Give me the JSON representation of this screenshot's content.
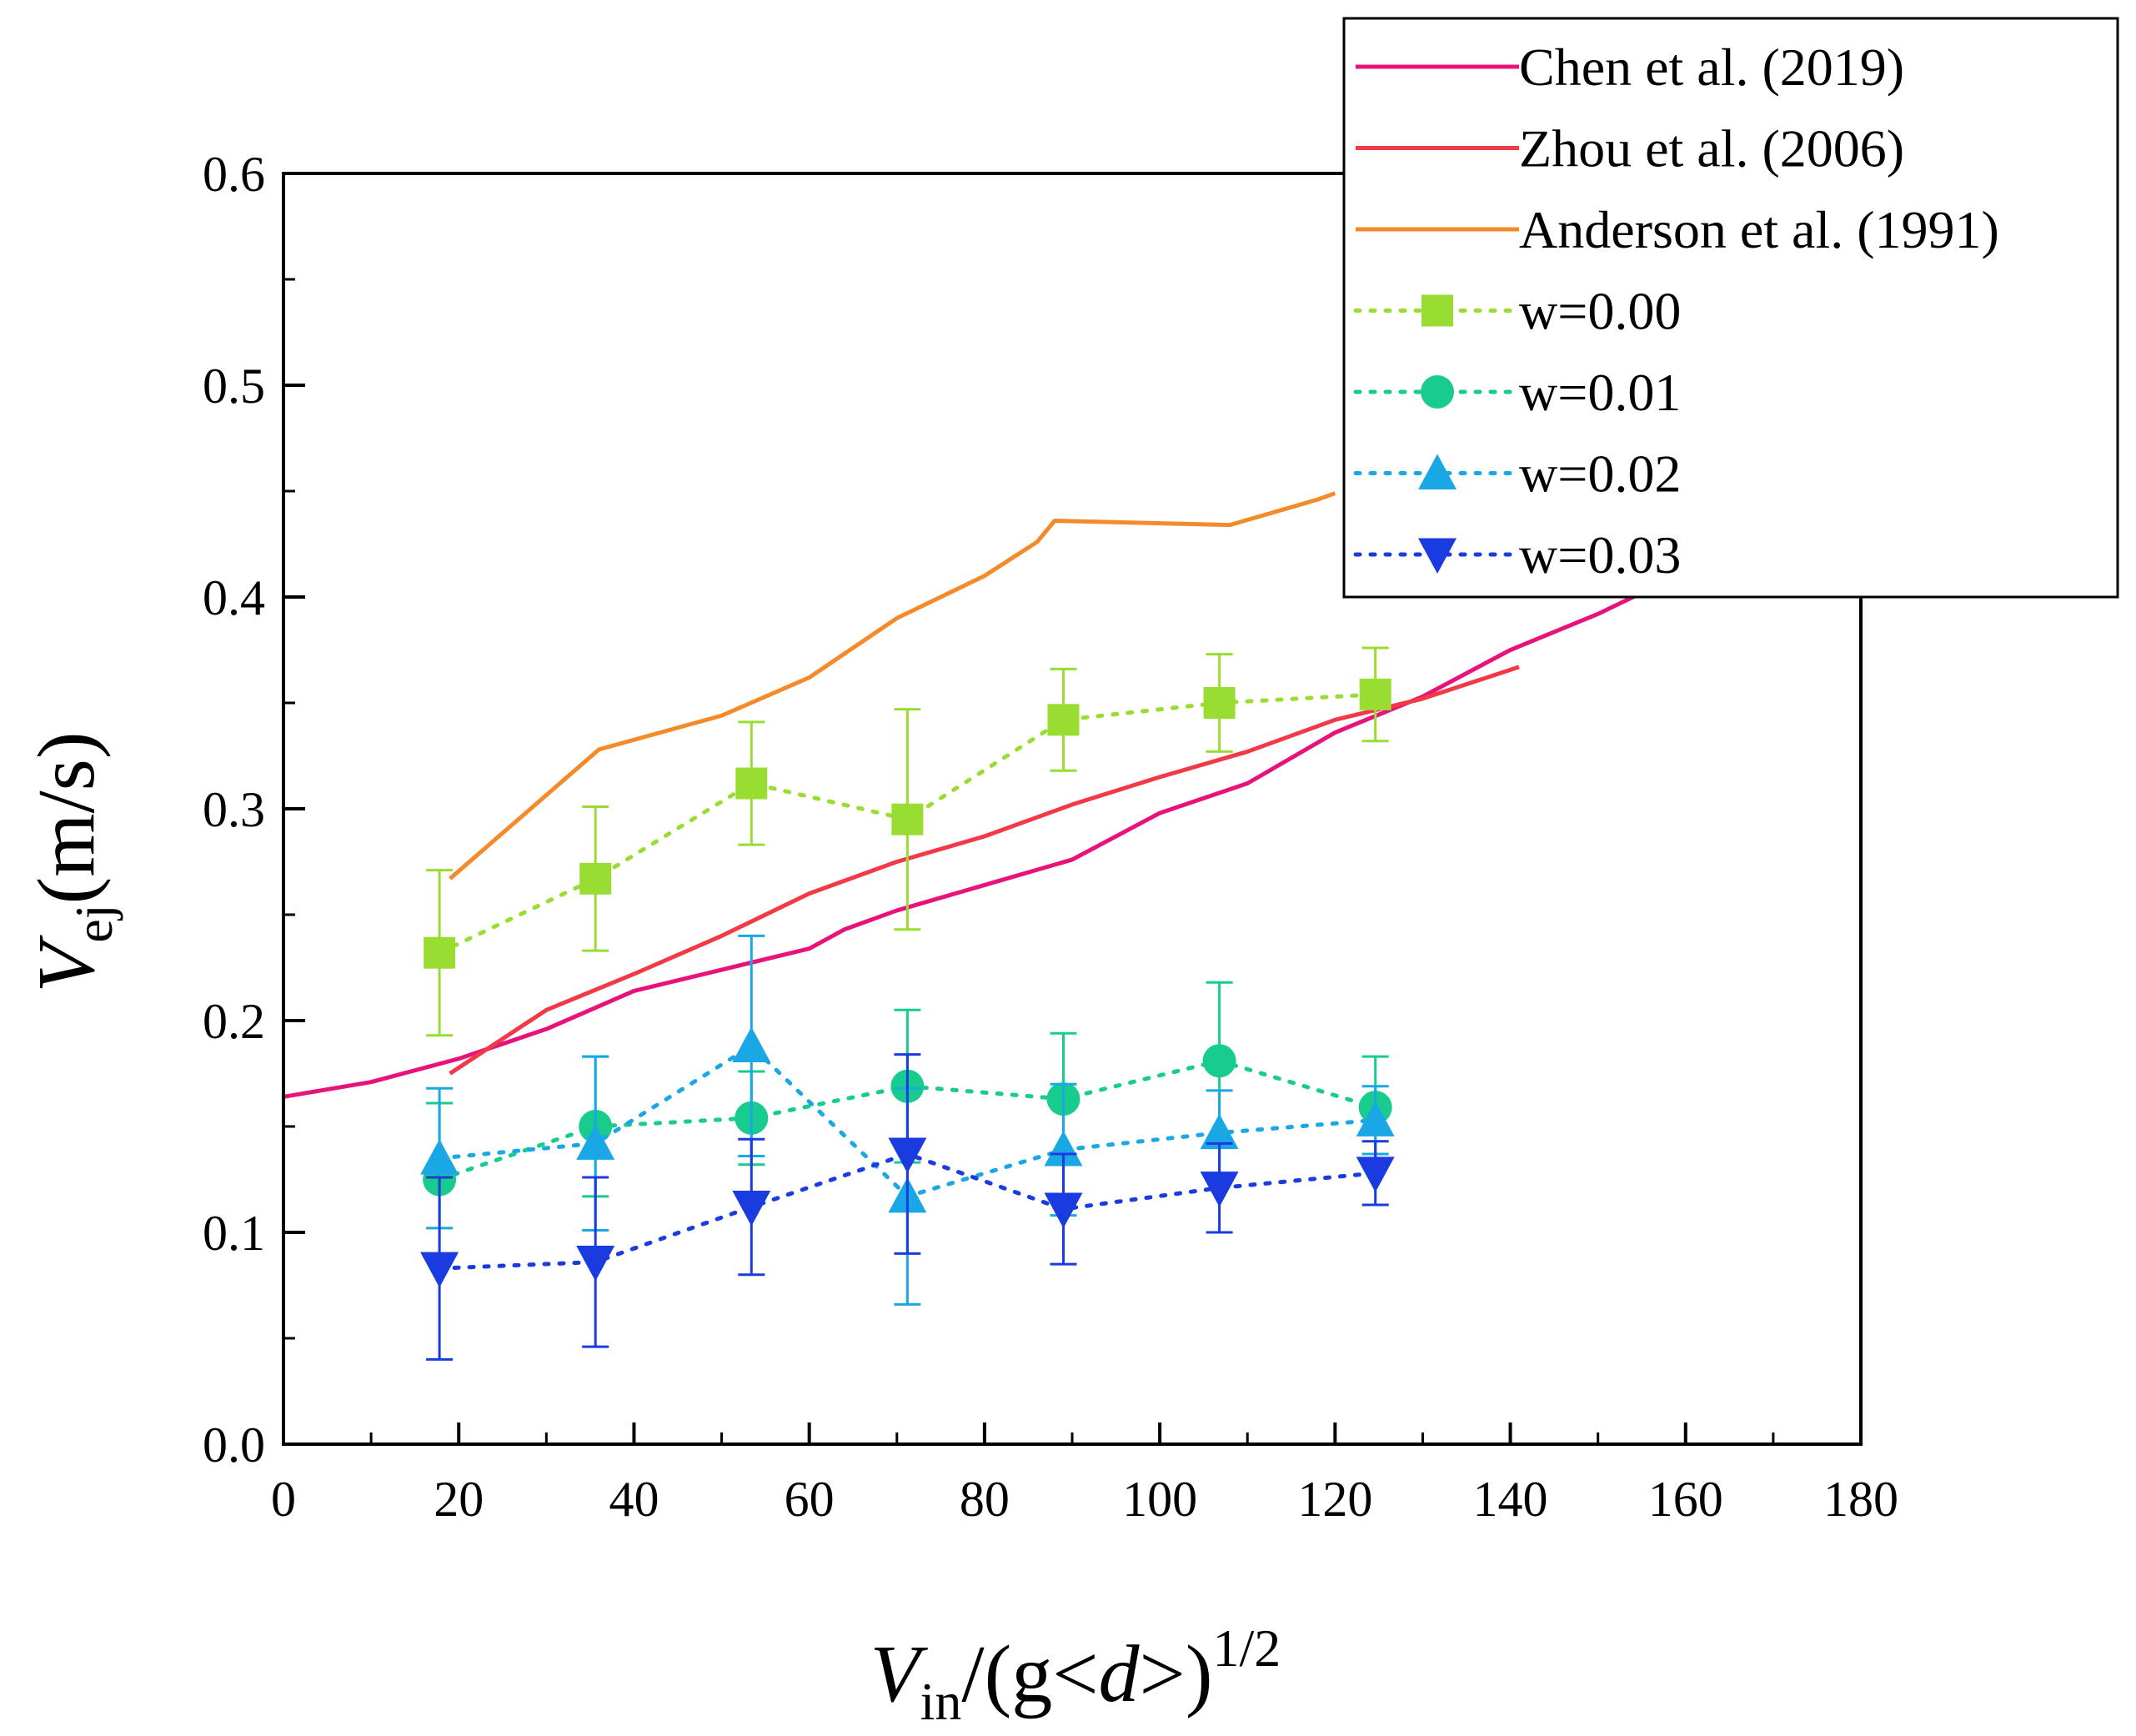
{
  "chart_data": {
    "type": "line",
    "title": "",
    "xlabel": {
      "main": "V",
      "sub": "in",
      "rest": "/(g<",
      "ital": "d",
      "close": ">)",
      "sup": "1/2"
    },
    "ylabel": {
      "main": "V",
      "sub": "ej",
      "rest": "(m/s)"
    },
    "xlim": [
      0,
      180
    ],
    "ylim": [
      0.0,
      0.6
    ],
    "x_ticks": [
      "0",
      "20",
      "40",
      "60",
      "80",
      "100",
      "120",
      "140",
      "160",
      "180"
    ],
    "y_ticks": [
      "0.0",
      "0.1",
      "0.2",
      "0.3",
      "0.4",
      "0.5",
      "0.6"
    ],
    "legend_position": "top-right",
    "series": [
      {
        "name": "Chen et al. (2019)",
        "color": "#e8137a",
        "style": "solid",
        "marker": "none",
        "x": [
          0,
          10,
          20,
          30,
          40,
          50,
          60,
          64,
          70,
          80,
          90,
          100,
          110,
          120,
          130,
          140,
          150,
          158
        ],
        "y": [
          0.164,
          0.171,
          0.182,
          0.196,
          0.214,
          0.224,
          0.234,
          0.243,
          0.252,
          0.264,
          0.276,
          0.298,
          0.312,
          0.336,
          0.353,
          0.375,
          0.392,
          0.408
        ]
      },
      {
        "name": "Zhou et al. (2006)",
        "color": "#f23a47",
        "style": "solid",
        "marker": "none",
        "x": [
          19,
          30,
          40,
          50,
          60,
          70,
          80,
          90,
          100,
          110,
          120,
          130,
          141
        ],
        "y": [
          0.175,
          0.205,
          0.222,
          0.24,
          0.26,
          0.275,
          0.287,
          0.302,
          0.315,
          0.327,
          0.342,
          0.352,
          0.367
        ]
      },
      {
        "name": "Anderson et al. (1991)",
        "color": "#f58a2a",
        "style": "solid",
        "marker": "none",
        "x": [
          19,
          36,
          50,
          60,
          70,
          80,
          86,
          88,
          108,
          118,
          120
        ],
        "y": [
          0.267,
          0.328,
          0.344,
          0.362,
          0.39,
          0.41,
          0.426,
          0.436,
          0.434,
          0.446,
          0.449
        ]
      },
      {
        "name": "w=0.00",
        "color": "#99dd33",
        "style": "dotted",
        "marker": "square",
        "x": [
          17.8,
          35.6,
          53.4,
          71.2,
          89.0,
          106.8,
          124.6
        ],
        "y": [
          0.232,
          0.267,
          0.312,
          0.295,
          0.342,
          0.35,
          0.354
        ],
        "err": [
          0.039,
          0.034,
          0.029,
          0.052,
          0.024,
          0.023,
          0.022
        ]
      },
      {
        "name": "w=0.01",
        "color": "#18cc8e",
        "style": "dotted",
        "marker": "circle",
        "x": [
          17.8,
          35.6,
          53.4,
          71.2,
          89.0,
          106.8,
          124.6
        ],
        "y": [
          0.125,
          0.15,
          0.154,
          0.169,
          0.163,
          0.181,
          0.159
        ],
        "err": [
          0.036,
          0.033,
          0.022,
          0.036,
          0.031,
          0.037,
          0.024
        ]
      },
      {
        "name": "w=0.02",
        "color": "#1aa7e6",
        "style": "dotted",
        "marker": "triangle-up",
        "x": [
          17.8,
          35.6,
          53.4,
          71.2,
          89.0,
          106.8,
          124.6
        ],
        "y": [
          0.135,
          0.142,
          0.188,
          0.117,
          0.139,
          0.147,
          0.153
        ],
        "err": [
          0.033,
          0.041,
          0.052,
          0.051,
          0.031,
          0.02,
          0.016
        ]
      },
      {
        "name": "w=0.03",
        "color": "#1a3be0",
        "style": "dotted",
        "marker": "triangle-down",
        "x": [
          17.8,
          35.6,
          53.4,
          71.2,
          89.0,
          106.8,
          124.6
        ],
        "y": [
          0.083,
          0.086,
          0.112,
          0.137,
          0.111,
          0.121,
          0.128
        ],
        "err": [
          0.043,
          0.04,
          0.032,
          0.047,
          0.026,
          0.021,
          0.015
        ]
      }
    ]
  }
}
